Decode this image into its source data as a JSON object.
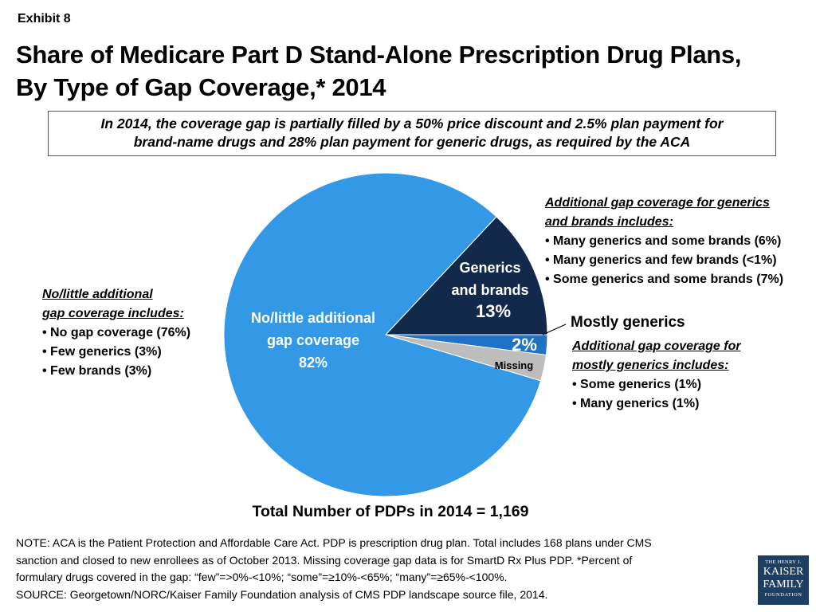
{
  "exhibit_label": "Exhibit 8",
  "title_line1": "Share of Medicare Part D Stand-Alone Prescription Drug Plans,",
  "title_line2": "By Type of Gap Coverage,* 2014",
  "callout": {
    "line1": "In 2014, the coverage gap is partially filled by a 50% price discount and 2.5% plan payment for",
    "line2": "brand-name drugs and 28% plan payment for generic drugs, as required by the ACA"
  },
  "chart_data": {
    "type": "pie",
    "title": "Share of Medicare Part D Stand-Alone Prescription Drug Plans, By Type of Gap Coverage,* 2014",
    "slices": [
      {
        "name": "Generics and brands",
        "label_line1": "Generics",
        "label_line2": "and brands",
        "value_label": "13%",
        "value": 13,
        "color": "#13294b"
      },
      {
        "name": "Mostly generics",
        "value_label": "2%",
        "value": 2,
        "color": "#1f72c4"
      },
      {
        "name": "Missing",
        "value_label": "Missing",
        "value": 2.6,
        "color": "#bdbdbd"
      },
      {
        "name": "No/little additional gap coverage",
        "label_line1": "No/little additional",
        "label_line2": "gap coverage",
        "value_label": "82%",
        "value": 82.4,
        "color": "#3399e6"
      }
    ]
  },
  "left_notes": {
    "header_line1": "No/little additional",
    "header_line2": "gap coverage includes:",
    "items": [
      "No gap coverage (76%)",
      "Few generics (3%)",
      "Few brands (3%)"
    ]
  },
  "right_notes": {
    "header_line1": "Additional gap coverage for generics",
    "header_line2": "and brands includes:",
    "items": [
      "Many generics and some brands (6%)",
      "Many generics and few brands (<1%)",
      "Some generics and some brands (7%)"
    ]
  },
  "mostly_generics": {
    "title": "Mostly generics",
    "header_line1": "Additional gap coverage for",
    "header_line2": "mostly generics includes:",
    "items": [
      "Some generics (1%)",
      "Many generics (1%)"
    ]
  },
  "total_label": "Total Number of PDPs in 2014 = 1,169",
  "note_lines": [
    "NOTE: ACA is the Patient Protection and Affordable Care Act.  PDP is prescription drug plan.  Total includes 168 plans under CMS",
    "sanction and closed to new enrollees as of October 2013. Missing coverage gap data is for SmartD Rx Plus PDP. *Percent of",
    "formulary drugs covered in the gap: “few”=>0%-<10%; “some”=≥10%-<65%; “many”=≥65%-<100%.",
    "SOURCE: Georgetown/NORC/Kaiser Family Foundation analysis of CMS PDP landscape source file, 2014."
  ],
  "logo": {
    "line1": "THE HENRY J.",
    "line2": "KAISER",
    "line3": "FAMILY",
    "line4": "FOUNDATION"
  }
}
